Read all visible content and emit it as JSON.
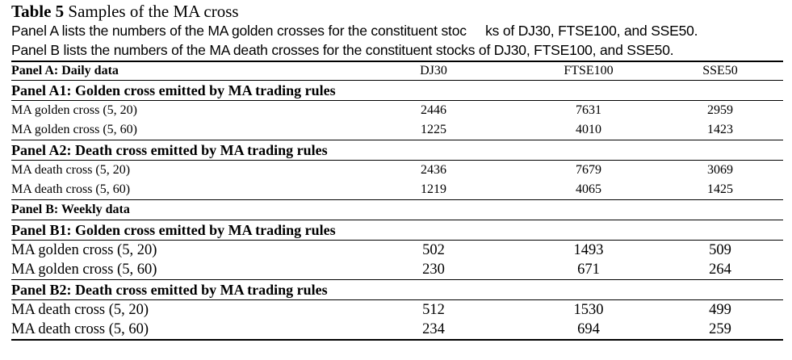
{
  "table": {
    "number": "Table 5",
    "title": "Samples of the MA cross",
    "caption_a": "Panel A lists the numbers of the MA golden crosses for the constituent stoc     ks of DJ30, FTSE100, and SSE50.",
    "caption_b": "Panel B lists the numbers of the MA death crosses for the constituent stocks of DJ30, FTSE100, and SSE50.",
    "columns": [
      "DJ30",
      "FTSE100",
      "SSE50"
    ],
    "panel_a_header": "Panel A: Daily data",
    "panel_a1": "Panel A1: Golden cross emitted by MA trading rules",
    "a1_rows": [
      {
        "label": "MA golden cross (5, 20)",
        "values": [
          "2446",
          "7631",
          "2959"
        ]
      },
      {
        "label": "MA golden cross (5, 60)",
        "values": [
          "1225",
          "4010",
          "1423"
        ]
      }
    ],
    "panel_a2": "Panel A2: Death cross emitted by MA trading rules",
    "a2_rows": [
      {
        "label": "MA death cross (5, 20)",
        "values": [
          "2436",
          "7679",
          "3069"
        ]
      },
      {
        "label": "MA death cross (5, 60)",
        "values": [
          "1219",
          "4065",
          "1425"
        ]
      }
    ],
    "panel_b_header": "Panel B: Weekly data",
    "panel_b1": "Panel B1: Golden cross emitted by MA trading rules",
    "b1_rows": [
      {
        "label": "MA golden cross (5, 20)",
        "values": [
          "502",
          "1493",
          "509"
        ]
      },
      {
        "label": "MA golden cross (5, 60)",
        "values": [
          "230",
          "671",
          "264"
        ]
      }
    ],
    "panel_b2": "Panel B2: Death cross emitted by MA trading rules",
    "b2_rows": [
      {
        "label": "MA death cross (5, 20)",
        "values": [
          "512",
          "1530",
          "499"
        ]
      },
      {
        "label": "MA death cross (5, 60)",
        "values": [
          "234",
          "694",
          "259"
        ]
      }
    ]
  }
}
